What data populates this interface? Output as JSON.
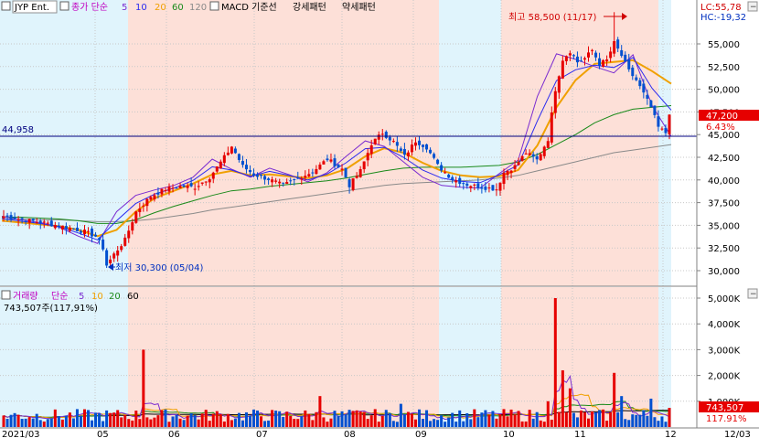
{
  "legend": {
    "ticker": "JYP Ent.",
    "ma_prefix": "종가 단순",
    "ma_periods": [
      {
        "label": "5",
        "color": "#7a2bd0"
      },
      {
        "label": "10",
        "color": "#2a2af0"
      },
      {
        "label": "20",
        "color": "#f0a000"
      },
      {
        "label": "60",
        "color": "#1a8a1a"
      },
      {
        "label": "120",
        "color": "#8a8a8a"
      }
    ],
    "macd_items": [
      "MACD 기준선",
      "강세패턴",
      "약세패턴"
    ]
  },
  "volume_legend": {
    "label": "거래량",
    "ma_prefix": "단순",
    "ma_periods": [
      {
        "label": "5",
        "color": "#7a2bd0"
      },
      {
        "label": "10",
        "color": "#f0a000"
      },
      {
        "label": "20",
        "color": "#1a8a1a"
      },
      {
        "label": "60",
        "color": "#000000"
      }
    ],
    "current": "743,507주(117,91%)"
  },
  "top_right": {
    "lc": "LC:55,78",
    "hc": "HC:-19,32"
  },
  "annotations": {
    "high": "최고 58,500 (11/17)",
    "low": "최저 30,300 (05/04)",
    "ref_line": "44,958"
  },
  "price_axis": {
    "ticks": [
      "55,000",
      "52,500",
      "50,000",
      "47,500",
      "45,000",
      "42,500",
      "40,000",
      "37,500",
      "35,000",
      "32,500",
      "30,000"
    ],
    "current_price": "47,200",
    "current_change": "6.43%"
  },
  "volume_axis": {
    "ticks": [
      "5,000K",
      "4,000K",
      "3,000K",
      "2,000K",
      "1,000K"
    ],
    "current_volume": "743,507",
    "current_pct": "117.91%"
  },
  "x_axis": {
    "labels": [
      "2021/03",
      "05",
      "06",
      "07",
      "08",
      "09",
      "10",
      "11",
      "12",
      "12/03"
    ]
  },
  "colors": {
    "up": "#e60000",
    "down": "#0050d0",
    "bull_zone": "#fde0d8",
    "bear_zone": "#e0f4fc",
    "ref_line": "#000080"
  },
  "chart_data": {
    "type": "candlestick",
    "price_range": [
      29000,
      57500
    ],
    "volume_range": [
      0,
      5300000
    ],
    "high": 58500,
    "low": 30300,
    "reference_price": 44958,
    "last_close": 47200,
    "last_volume": 743507,
    "ma_checkpoints": {
      "ma5": [
        36000,
        35600,
        35300,
        34800,
        33800,
        33000,
        36500,
        38300,
        38900,
        39400,
        40300,
        42300,
        41200,
        40300,
        41300,
        40600,
        39800,
        40800,
        42600,
        44300,
        43700,
        42000,
        40300,
        39400,
        39200,
        39100,
        40700,
        42200,
        49200,
        53900,
        53300,
        52500,
        51800,
        53800,
        48200,
        44800
      ],
      "ma20": [
        35500,
        35300,
        35100,
        34900,
        34500,
        33800,
        34500,
        36500,
        38000,
        38800,
        39600,
        40600,
        41000,
        40500,
        40600,
        40400,
        40200,
        40500,
        41200,
        42600,
        43500,
        43000,
        41900,
        41000,
        40500,
        40300,
        40400,
        41100,
        43800,
        48000,
        51000,
        52800,
        53000,
        53200,
        52000,
        50600
      ],
      "ma60": [
        35900,
        35900,
        35800,
        35700,
        35500,
        35200,
        35200,
        35600,
        36400,
        37100,
        37700,
        38300,
        38800,
        39000,
        39300,
        39500,
        39700,
        39900,
        40200,
        40600,
        41000,
        41300,
        41400,
        41400,
        41400,
        41500,
        41600,
        42000,
        42800,
        43900,
        45000,
        46300,
        47200,
        47800,
        48000,
        48200
      ],
      "ma120": [
        35700,
        35700,
        35600,
        35600,
        35500,
        35400,
        35400,
        35500,
        35700,
        36000,
        36300,
        36700,
        37000,
        37300,
        37600,
        37900,
        38200,
        38500,
        38800,
        39100,
        39400,
        39600,
        39700,
        39800,
        39900,
        40000,
        40200,
        40500,
        41000,
        41500,
        42000,
        42500,
        43000,
        43300,
        43600,
        43900
      ]
    }
  }
}
